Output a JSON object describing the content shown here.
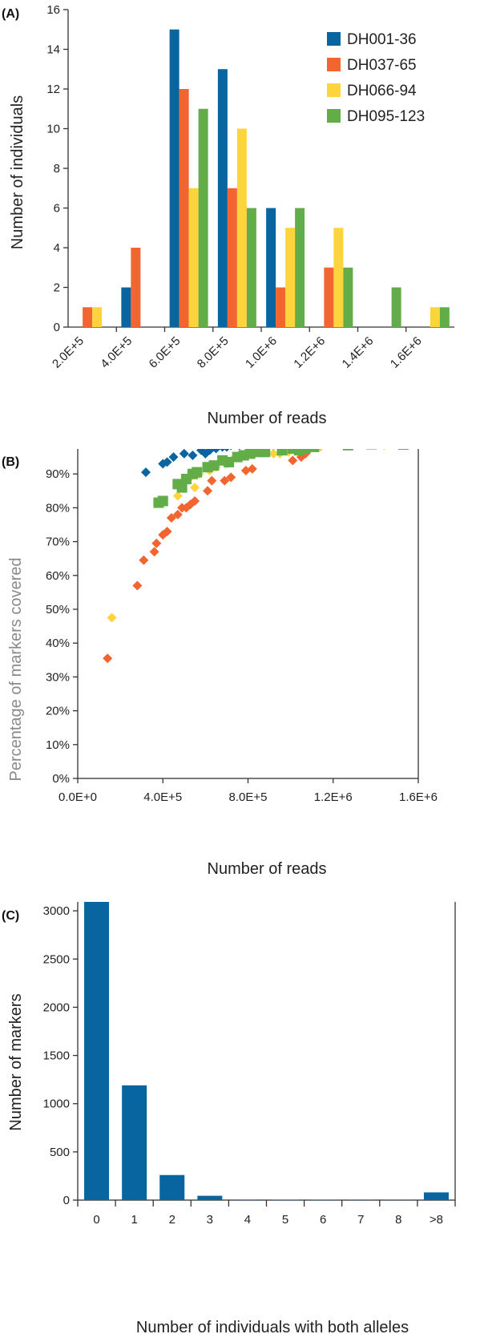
{
  "figure": {
    "panel_labels": [
      "(A)",
      "(B)",
      "(C)"
    ]
  },
  "chart_data": [
    {
      "panel": "(A)",
      "type": "bar",
      "xlabel": "Number of reads",
      "ylabel": "Number of individuals",
      "ylim": [
        0,
        16
      ],
      "yticks": [
        "0",
        "2",
        "4",
        "6",
        "8",
        "10",
        "12",
        "14",
        "16"
      ],
      "categories": [
        "2.0E+5",
        "4.0E+5",
        "6.0E+5",
        "8.0E+5",
        "1.0E+6",
        "1.2E+6",
        "1.4E+6",
        "1.6E+6"
      ],
      "legend_position": "top-right",
      "grid": false,
      "series": [
        {
          "name": "DH001-36",
          "color": "#08659f",
          "values": [
            0,
            2,
            15,
            13,
            6,
            0,
            0,
            0
          ]
        },
        {
          "name": "DH037-65",
          "color": "#f26430",
          "values": [
            1,
            4,
            12,
            7,
            2,
            3,
            0,
            0
          ]
        },
        {
          "name": "DH066-94",
          "color": "#fdd43c",
          "values": [
            1,
            0,
            7,
            10,
            5,
            5,
            0,
            1
          ]
        },
        {
          "name": "DH095-123",
          "color": "#62ad47",
          "values": [
            0,
            0,
            11,
            6,
            6,
            3,
            2,
            1
          ]
        }
      ]
    },
    {
      "panel": "(B)",
      "type": "scatter",
      "xlabel": "Number of reads",
      "ylabel": "Percentage of markers covered",
      "xlim": [
        0,
        1600000
      ],
      "ylim": [
        0,
        100
      ],
      "xticks": [
        "0.0E+0",
        "4.0E+5",
        "8.0E+5",
        "1.2E+6",
        "1.6E+6"
      ],
      "yticks": [
        "0%",
        "10%",
        "20%",
        "30%",
        "40%",
        "50%",
        "60%",
        "70%",
        "80%",
        "90%",
        "100%"
      ],
      "grid": false,
      "series": [
        {
          "color": "#08659f",
          "marker": "diamond",
          "points": [
            [
              320000,
              90.5
            ],
            [
              400000,
              93
            ],
            [
              420000,
              93.5
            ],
            [
              450000,
              95
            ],
            [
              500000,
              96
            ],
            [
              540000,
              95.5
            ],
            [
              580000,
              97
            ],
            [
              600000,
              96
            ],
            [
              620000,
              97
            ],
            [
              650000,
              97.5
            ],
            [
              680000,
              98
            ],
            [
              700000,
              98
            ],
            [
              720000,
              98.5
            ],
            [
              760000,
              98.5
            ],
            [
              800000,
              98.5
            ],
            [
              820000,
              99
            ],
            [
              850000,
              99
            ],
            [
              920000,
              98.5
            ],
            [
              960000,
              98.5
            ]
          ]
        },
        {
          "color": "#f26430",
          "marker": "diamond",
          "points": [
            [
              140000,
              35.5
            ],
            [
              280000,
              57
            ],
            [
              310000,
              64.5
            ],
            [
              360000,
              67
            ],
            [
              370000,
              69.5
            ],
            [
              400000,
              72
            ],
            [
              420000,
              73
            ],
            [
              440000,
              77
            ],
            [
              470000,
              78
            ],
            [
              490000,
              80
            ],
            [
              510000,
              80
            ],
            [
              530000,
              81
            ],
            [
              550000,
              82
            ],
            [
              610000,
              85
            ],
            [
              630000,
              88
            ],
            [
              690000,
              88
            ],
            [
              720000,
              89
            ],
            [
              790000,
              91
            ],
            [
              820000,
              91.5
            ],
            [
              1010000,
              94
            ],
            [
              1050000,
              95
            ],
            [
              1070000,
              96
            ]
          ]
        },
        {
          "color": "#fdd43c",
          "marker": "diamond",
          "points": [
            [
              160000,
              47.5
            ],
            [
              470000,
              83.5
            ],
            [
              490000,
              86
            ],
            [
              510000,
              88
            ],
            [
              530000,
              89
            ],
            [
              550000,
              86
            ],
            [
              570000,
              90
            ],
            [
              620000,
              91
            ],
            [
              650000,
              92
            ],
            [
              700000,
              93
            ],
            [
              740000,
              95
            ],
            [
              790000,
              95.5
            ],
            [
              820000,
              96
            ],
            [
              920000,
              96
            ],
            [
              950000,
              96
            ],
            [
              990000,
              96.5
            ],
            [
              1020000,
              97
            ],
            [
              1060000,
              97.5
            ],
            [
              1080000,
              98
            ],
            [
              1140000,
              98
            ],
            [
              1440000,
              98.5
            ]
          ]
        },
        {
          "color": "#62ad47",
          "marker": "square",
          "points": [
            [
              380000,
              81.5
            ],
            [
              400000,
              82
            ],
            [
              470000,
              87
            ],
            [
              490000,
              86
            ],
            [
              510000,
              88.5
            ],
            [
              540000,
              90
            ],
            [
              560000,
              90.5
            ],
            [
              610000,
              92
            ],
            [
              640000,
              92.5
            ],
            [
              680000,
              94
            ],
            [
              710000,
              93.5
            ],
            [
              750000,
              95
            ],
            [
              780000,
              95.5
            ],
            [
              810000,
              96
            ],
            [
              850000,
              96.5
            ],
            [
              880000,
              96.5
            ],
            [
              960000,
              97
            ],
            [
              1010000,
              97.5
            ],
            [
              1040000,
              97
            ],
            [
              1070000,
              97.5
            ],
            [
              1110000,
              98
            ],
            [
              1270000,
              98.5
            ],
            [
              1380000,
              98.8
            ],
            [
              1530000,
              98.7
            ]
          ]
        }
      ]
    },
    {
      "panel": "(C)",
      "type": "bar",
      "xlabel": "Number of individuals with both alleles",
      "ylabel": "Number of markers",
      "ylim": [
        0,
        3500
      ],
      "yticks": [
        "0",
        "500",
        "1000",
        "1500",
        "2000",
        "2500",
        "3000",
        "3500"
      ],
      "categories": [
        "0",
        "1",
        "2",
        "3",
        "4",
        "5",
        "6",
        "7",
        "8",
        ">8"
      ],
      "grid": false,
      "series": [
        {
          "color": "#08659f",
          "values": [
            3300,
            1190,
            260,
            45,
            5,
            4,
            3,
            2,
            2,
            80
          ]
        }
      ]
    }
  ]
}
